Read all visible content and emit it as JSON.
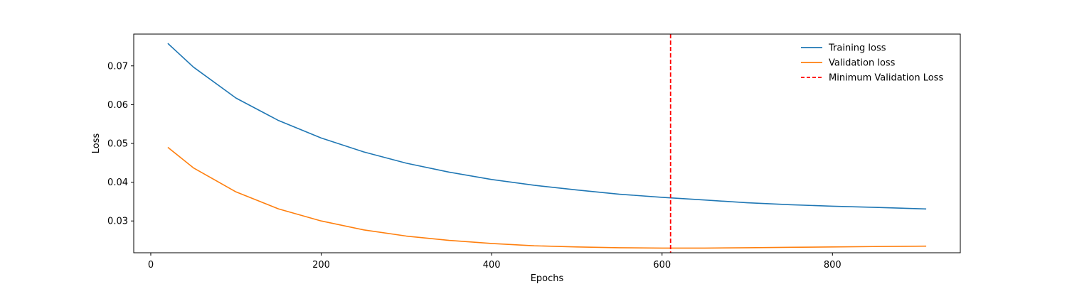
{
  "chart_data": {
    "type": "line",
    "xlabel": "Epochs",
    "ylabel": "Loss",
    "xlim": [
      -20,
      950
    ],
    "ylim": [
      0.0218,
      0.0782
    ],
    "x_ticks": [
      0,
      200,
      400,
      600,
      800
    ],
    "y_ticks": [
      0.03,
      0.04,
      0.05,
      0.06,
      0.07
    ],
    "grid": false,
    "legend_position": "top-right",
    "series": [
      {
        "name": "Training loss",
        "color": "#1f77b4",
        "style": "solid",
        "x": [
          20,
          50,
          100,
          150,
          200,
          250,
          300,
          350,
          400,
          450,
          500,
          550,
          600,
          650,
          700,
          750,
          800,
          850,
          910
        ],
        "y": [
          0.0758,
          0.0697,
          0.0617,
          0.0559,
          0.0514,
          0.0478,
          0.0449,
          0.0426,
          0.0407,
          0.0392,
          0.038,
          0.0369,
          0.0361,
          0.0354,
          0.0347,
          0.0342,
          0.0338,
          0.0335,
          0.0331
        ]
      },
      {
        "name": "Validation loss",
        "color": "#ff7f0e",
        "style": "solid",
        "x": [
          20,
          50,
          100,
          150,
          200,
          250,
          300,
          350,
          400,
          450,
          500,
          550,
          600,
          650,
          700,
          750,
          800,
          850,
          910
        ],
        "y": [
          0.049,
          0.0437,
          0.0375,
          0.0331,
          0.03,
          0.0277,
          0.0261,
          0.025,
          0.0242,
          0.0236,
          0.0233,
          0.0231,
          0.023,
          0.023,
          0.0231,
          0.0232,
          0.0233,
          0.0234,
          0.0235
        ]
      }
    ],
    "vlines": [
      {
        "name": "Minimum Validation Loss",
        "x": 610,
        "color": "#ff0000",
        "style": "dashed"
      }
    ]
  }
}
